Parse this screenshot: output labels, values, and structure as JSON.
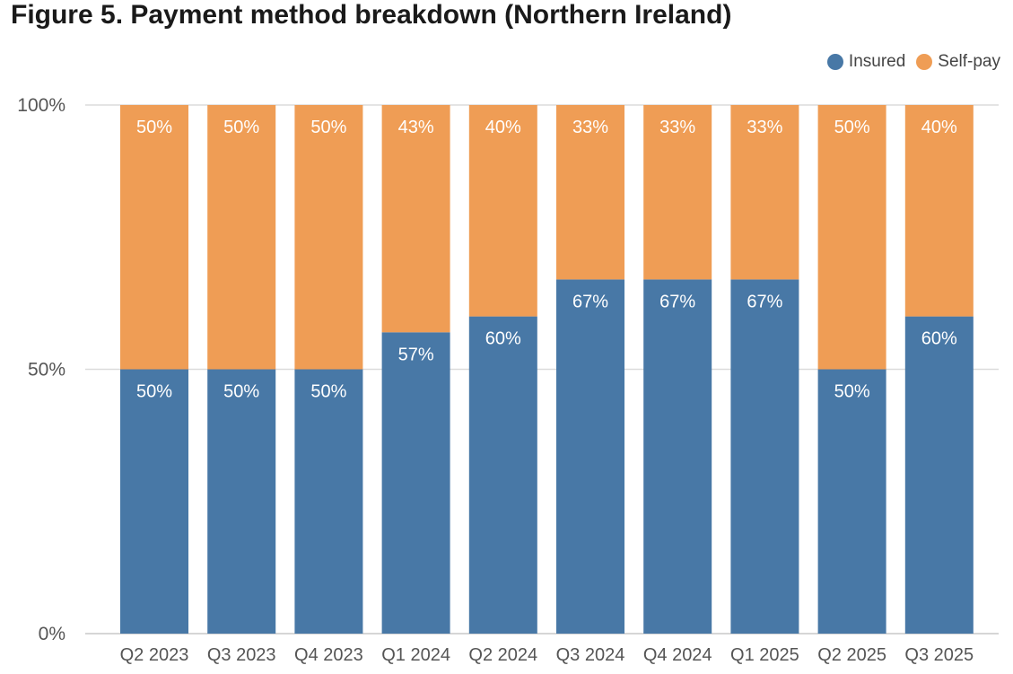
{
  "title": "Figure 5. Payment method breakdown (Northern Ireland)",
  "legend": {
    "position": "top-right",
    "items": [
      {
        "label": "Insured",
        "color": "#4878a6"
      },
      {
        "label": "Self-pay",
        "color": "#ef9d55"
      }
    ]
  },
  "chart_data": {
    "type": "bar",
    "stacked": true,
    "title": "Figure 5. Payment method breakdown (Northern Ireland)",
    "xlabel": "",
    "ylabel": "",
    "ylim": [
      0,
      100
    ],
    "yticks": [
      "0%",
      "50%",
      "100%"
    ],
    "grid": true,
    "categories": [
      "Q2 2023",
      "Q3 2023",
      "Q4 2023",
      "Q1 2024",
      "Q2 2024",
      "Q3 2024",
      "Q4 2024",
      "Q1 2025",
      "Q2 2025",
      "Q3 2025"
    ],
    "series": [
      {
        "name": "Insured",
        "color": "#4878a6",
        "values": [
          50,
          50,
          50,
          57,
          60,
          67,
          67,
          67,
          50,
          60
        ]
      },
      {
        "name": "Self-pay",
        "color": "#ef9d55",
        "values": [
          50,
          50,
          50,
          43,
          40,
          33,
          33,
          33,
          50,
          40
        ]
      }
    ]
  }
}
